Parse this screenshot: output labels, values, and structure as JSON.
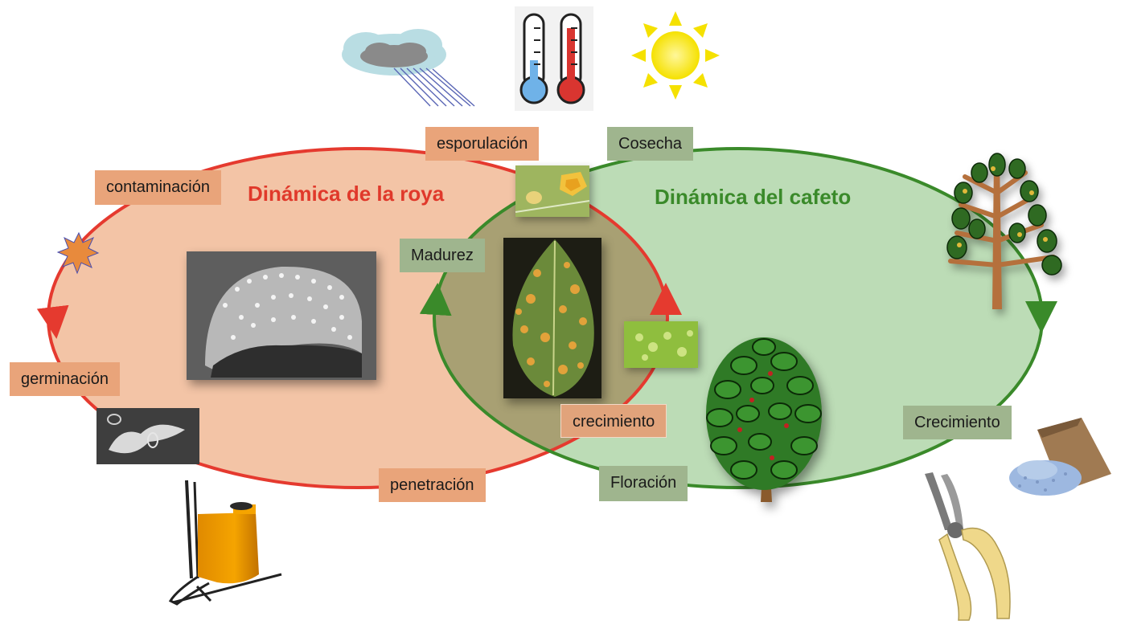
{
  "titles": {
    "rust_cycle": "Dinámica de la roya",
    "coffee_cycle": "Dinámica del cafeto"
  },
  "rust_stages": {
    "contaminacion": "contaminación",
    "germinacion": "germinación",
    "penetracion": "penetración",
    "crecimiento": "crecimiento",
    "esporulacion": "esporulación"
  },
  "coffee_stages": {
    "cosecha": "Cosecha",
    "madurez": "Madurez",
    "floracion": "Floración",
    "crecimiento": "Crecimiento"
  },
  "icons": [
    "rain-cloud-icon",
    "thermometers-icon",
    "sun-icon",
    "spore-star-icon",
    "backpack-sprayer-icon",
    "pruning-shears-icon",
    "fertilizer-sack-icon",
    "coffee-shrub-icon",
    "coffee-branch-icon"
  ],
  "colors": {
    "rust_fill": "#f3c4a6",
    "rust_stroke": "#e53a2f",
    "coffee_fill": "#bcdcb6",
    "coffee_stroke": "#3a8a2a",
    "overlap_fill": "#a8a073",
    "rust_title": "#e0392b",
    "coffee_title": "#3a8a2a",
    "rust_label": "#e9a47a",
    "coffee_label": "#9fb58e"
  }
}
